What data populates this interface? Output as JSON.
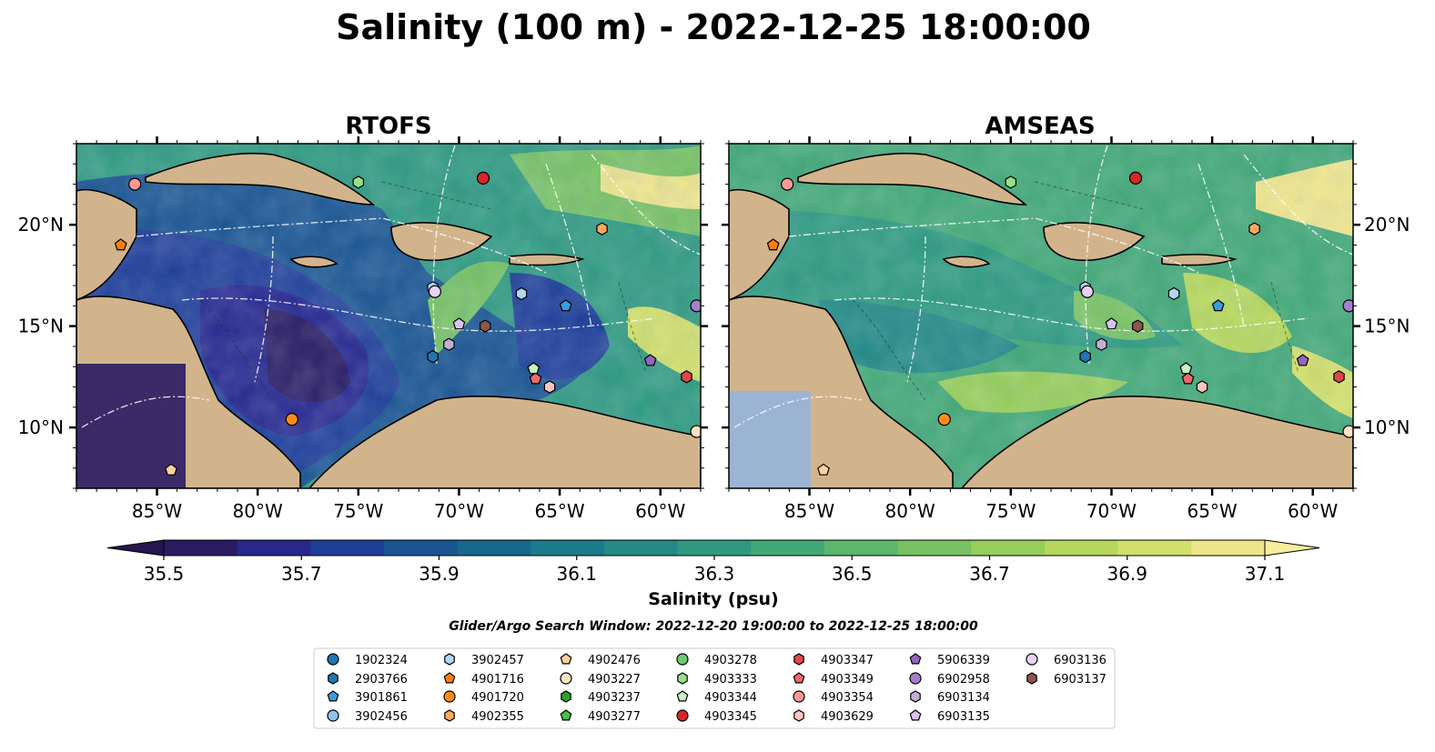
{
  "title": "Salinity (100 m) - 2022-12-25 18:00:00",
  "chart_data": {
    "type": "heatmap",
    "title": "Salinity (100 m) - 2022-12-25 18:00:00",
    "panels": [
      {
        "name": "RTOFS"
      },
      {
        "name": "AMSEAS"
      }
    ],
    "x_ticks": [
      {
        "lon": -85,
        "label": "85°W"
      },
      {
        "lon": -80,
        "label": "80°W"
      },
      {
        "lon": -75,
        "label": "75°W"
      },
      {
        "lon": -70,
        "label": "70°W"
      },
      {
        "lon": -65,
        "label": "65°W"
      },
      {
        "lon": -60,
        "label": "60°W"
      }
    ],
    "y_ticks": [
      {
        "lat": 20,
        "label": "20°N"
      },
      {
        "lat": 15,
        "label": "15°N"
      },
      {
        "lat": 10,
        "label": "10°N"
      }
    ],
    "xlim": [
      -89,
      -58
    ],
    "ylim": [
      7,
      24
    ],
    "colorbar": {
      "label": "Salinity (psu)",
      "min": 35.5,
      "max": 37.1,
      "step": 0.1,
      "extend": "both",
      "tick_labels": [
        "35.5",
        "35.7",
        "35.9",
        "36.1",
        "36.3",
        "36.5",
        "36.7",
        "36.9",
        "37.1"
      ],
      "colors": [
        "#2a1b63",
        "#27278e",
        "#1f3e98",
        "#1a5591",
        "#17688c",
        "#1b7b8a",
        "#248a86",
        "#2f9a80",
        "#43a877",
        "#5cb66e",
        "#78c264",
        "#97cd5a",
        "#b6d75c",
        "#d2df6b",
        "#eee58b"
      ]
    },
    "search_window": "Glider/Argo Search Window: 2022-12-20 19:00:00 to 2022-12-25 18:00:00",
    "legend": [
      {
        "id": "1902324",
        "marker": "circle",
        "color": "#1f77b4"
      },
      {
        "id": "2903766",
        "marker": "hexagon",
        "color": "#1f77b4"
      },
      {
        "id": "3901861",
        "marker": "pentagon",
        "color": "#3a9be0"
      },
      {
        "id": "3902456",
        "marker": "circle",
        "color": "#8fc2ec"
      },
      {
        "id": "3902457",
        "marker": "hexagon",
        "color": "#aed8f5"
      },
      {
        "id": "4901716",
        "marker": "pentagon",
        "color": "#ff7f0e"
      },
      {
        "id": "4901720",
        "marker": "circle",
        "color": "#ff8c1a"
      },
      {
        "id": "4902355",
        "marker": "hexagon",
        "color": "#ffa95c"
      },
      {
        "id": "4902476",
        "marker": "pentagon",
        "color": "#ffd09c"
      },
      {
        "id": "4903227",
        "marker": "circle",
        "color": "#ffe3c4"
      },
      {
        "id": "4903237",
        "marker": "hexagon",
        "color": "#2ca02c"
      },
      {
        "id": "4903277",
        "marker": "pentagon",
        "color": "#4cbb4c"
      },
      {
        "id": "4903278",
        "marker": "circle",
        "color": "#6ccc6c"
      },
      {
        "id": "4903333",
        "marker": "hexagon",
        "color": "#98df8a"
      },
      {
        "id": "4903344",
        "marker": "pentagon",
        "color": "#c6f2c0"
      },
      {
        "id": "4903345",
        "marker": "circle",
        "color": "#d62728"
      },
      {
        "id": "4903347",
        "marker": "hexagon",
        "color": "#e04848"
      },
      {
        "id": "4903349",
        "marker": "pentagon",
        "color": "#f0686a"
      },
      {
        "id": "4903354",
        "marker": "circle",
        "color": "#ff9896"
      },
      {
        "id": "4903629",
        "marker": "hexagon",
        "color": "#ffc4c2"
      },
      {
        "id": "5906339",
        "marker": "pentagon",
        "color": "#9467bd"
      },
      {
        "id": "6902958",
        "marker": "circle",
        "color": "#a57fcc"
      },
      {
        "id": "6903134",
        "marker": "hexagon",
        "color": "#c5b0d5"
      },
      {
        "id": "6903135",
        "marker": "pentagon",
        "color": "#d8c3ee"
      },
      {
        "id": "6903136",
        "marker": "circle",
        "color": "#e6d2f7"
      },
      {
        "id": "6903137",
        "marker": "hexagon",
        "color": "#8c564b"
      }
    ],
    "observations": [
      {
        "id": "4903354",
        "lon": -86.1,
        "lat": 22.0
      },
      {
        "id": "4901716",
        "lon": -86.8,
        "lat": 19.0
      },
      {
        "id": "4903333",
        "lon": -75.0,
        "lat": 22.1
      },
      {
        "id": "4903345",
        "lon": -68.8,
        "lat": 22.3
      },
      {
        "id": "4902355",
        "lon": -62.9,
        "lat": 19.8
      },
      {
        "id": "3902457",
        "lon": -71.3,
        "lat": 16.9
      },
      {
        "id": "6903136",
        "lon": -71.2,
        "lat": 16.7
      },
      {
        "id": "3902457",
        "lon": -66.9,
        "lat": 16.6
      },
      {
        "id": "3901861",
        "lon": -64.7,
        "lat": 16.0
      },
      {
        "id": "6903135",
        "lon": -70.0,
        "lat": 15.1
      },
      {
        "id": "6903137",
        "lon": -68.7,
        "lat": 15.0
      },
      {
        "id": "6903134",
        "lon": -70.5,
        "lat": 14.1
      },
      {
        "id": "2903766",
        "lon": -71.3,
        "lat": 13.5
      },
      {
        "id": "5906339",
        "lon": -60.5,
        "lat": 13.3
      },
      {
        "id": "4903349",
        "lon": -66.2,
        "lat": 12.4
      },
      {
        "id": "4903344",
        "lon": -66.3,
        "lat": 12.9
      },
      {
        "id": "4903629",
        "lon": -65.5,
        "lat": 12.0
      },
      {
        "id": "4903347",
        "lon": -58.7,
        "lat": 12.5
      },
      {
        "id": "6902958",
        "lon": -58.2,
        "lat": 16.0
      },
      {
        "id": "4901720",
        "lon": -78.3,
        "lat": 10.4
      },
      {
        "id": "4903227",
        "lon": -58.2,
        "lat": 9.8
      },
      {
        "id": "4902476",
        "lon": -84.3,
        "lat": 7.9
      }
    ]
  }
}
